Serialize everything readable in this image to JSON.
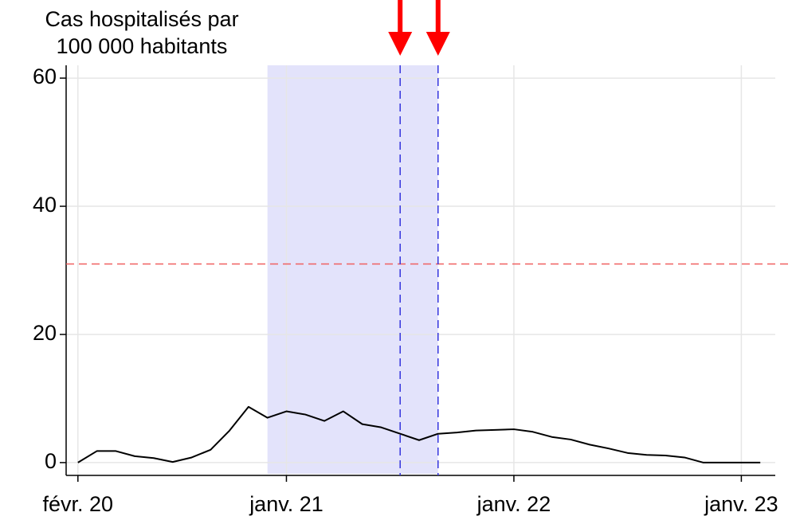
{
  "chart_data": {
    "type": "line",
    "ylabel": [
      "Cas hospitalisés par",
      "100 000 habitants"
    ],
    "x": [
      "2020-02",
      "2020-03",
      "2020-04",
      "2020-05",
      "2020-06",
      "2020-07",
      "2020-08",
      "2020-09",
      "2020-10",
      "2020-11",
      "2020-12",
      "2021-01",
      "2021-02",
      "2021-03",
      "2021-04",
      "2021-05",
      "2021-06",
      "2021-07",
      "2021-08",
      "2021-09",
      "2021-10",
      "2021-11",
      "2021-12",
      "2022-01",
      "2022-02",
      "2022-03",
      "2022-04",
      "2022-05",
      "2022-06",
      "2022-07",
      "2022-08",
      "2022-09",
      "2022-10",
      "2022-11",
      "2022-12",
      "2023-01",
      "2023-02"
    ],
    "series": [
      {
        "color": "#000000",
        "values": [
          0,
          1.8,
          1.8,
          1,
          0.7,
          0.1,
          0.8,
          2,
          5,
          8.7,
          7,
          8,
          7.5,
          6.5,
          8,
          6,
          5.5,
          4.5,
          3.5,
          4.5,
          4.7,
          5,
          5.1,
          5.2,
          4.8,
          4,
          3.6,
          2.8,
          2.2,
          1.5,
          1.2,
          1.1,
          0.8,
          0,
          0,
          0,
          0
        ]
      }
    ],
    "xlim": [
      "2020-01",
      "2023-03"
    ],
    "xticks": [
      {
        "value": "2020-02",
        "label": "févr. 20"
      },
      {
        "value": "2021-01",
        "label": "janv. 21"
      },
      {
        "value": "2022-01",
        "label": "janv. 22"
      },
      {
        "value": "2023-01",
        "label": "janv. 23"
      }
    ],
    "ylim": [
      -2,
      62
    ],
    "yticks": [
      0,
      20,
      40,
      60
    ],
    "grid": true,
    "shade": {
      "x": [
        "2020-12",
        "2021-09"
      ],
      "color": "#e3e3fb"
    },
    "vlines": {
      "x": [
        "2021-07",
        "2021-09"
      ],
      "color": "#3333dd"
    },
    "hline": {
      "y": 31,
      "color": "#f06060"
    },
    "arrow_color": "#ff0000"
  }
}
